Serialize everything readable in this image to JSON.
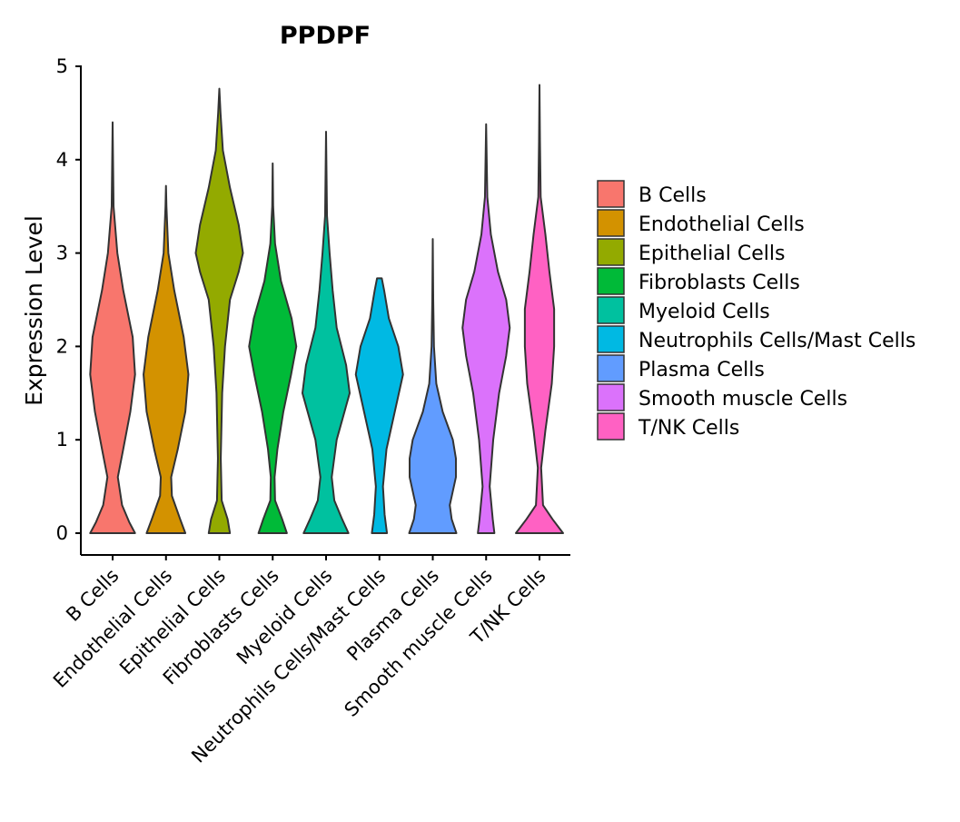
{
  "chart_data": {
    "type": "violin",
    "title": "PPDPF",
    "xlabel": "",
    "ylabel": "Expression Level",
    "ylim": [
      0,
      5
    ],
    "yticks": [
      0,
      1,
      2,
      3,
      4,
      5
    ],
    "ytick_labels": [
      "0",
      "1",
      "2",
      "3",
      "4",
      "5"
    ],
    "legend_position": "right",
    "categories": [
      "B Cells",
      "Endothelial Cells",
      "Epithelial Cells",
      "Fibroblasts Cells",
      "Myeloid Cells",
      "Neutrophils Cells/Mast Cells",
      "Plasma Cells",
      "Smooth muscle Cells",
      "T/NK Cells"
    ],
    "colors": [
      "#F8766D",
      "#D39200",
      "#93AA00",
      "#00BA38",
      "#00C19F",
      "#00B9E3",
      "#619CFF",
      "#DB72FB",
      "#FF61C3"
    ],
    "series": [
      {
        "name": "B Cells",
        "max": 4.4,
        "profile": [
          [
            0,
            0.95
          ],
          [
            0.12,
            0.7
          ],
          [
            0.3,
            0.4
          ],
          [
            0.6,
            0.22
          ],
          [
            0.9,
            0.45
          ],
          [
            1.3,
            0.75
          ],
          [
            1.7,
            0.95
          ],
          [
            2.1,
            0.85
          ],
          [
            2.6,
            0.45
          ],
          [
            3.0,
            0.2
          ],
          [
            3.5,
            0.04
          ],
          [
            4.4,
            0.0
          ]
        ]
      },
      {
        "name": "Endothelial Cells",
        "max": 3.72,
        "profile": [
          [
            0,
            0.82
          ],
          [
            0.15,
            0.6
          ],
          [
            0.4,
            0.25
          ],
          [
            0.6,
            0.22
          ],
          [
            0.9,
            0.5
          ],
          [
            1.3,
            0.82
          ],
          [
            1.7,
            0.95
          ],
          [
            2.1,
            0.75
          ],
          [
            2.6,
            0.35
          ],
          [
            3.0,
            0.1
          ],
          [
            3.5,
            0.02
          ],
          [
            3.72,
            0.0
          ]
        ]
      },
      {
        "name": "Epithelial Cells",
        "max": 4.76,
        "profile": [
          [
            0,
            0.45
          ],
          [
            0.15,
            0.35
          ],
          [
            0.35,
            0.1
          ],
          [
            0.8,
            0.06
          ],
          [
            1.5,
            0.12
          ],
          [
            2.0,
            0.24
          ],
          [
            2.5,
            0.45
          ],
          [
            2.8,
            0.82
          ],
          [
            3.0,
            1.0
          ],
          [
            3.3,
            0.82
          ],
          [
            3.7,
            0.45
          ],
          [
            4.1,
            0.15
          ],
          [
            4.5,
            0.05
          ],
          [
            4.76,
            0.0
          ]
        ]
      },
      {
        "name": "Fibroblasts Cells",
        "max": 3.96,
        "profile": [
          [
            0,
            0.6
          ],
          [
            0.15,
            0.4
          ],
          [
            0.35,
            0.1
          ],
          [
            0.6,
            0.08
          ],
          [
            0.9,
            0.2
          ],
          [
            1.3,
            0.45
          ],
          [
            1.7,
            0.78
          ],
          [
            2.0,
            1.0
          ],
          [
            2.3,
            0.8
          ],
          [
            2.7,
            0.35
          ],
          [
            3.1,
            0.1
          ],
          [
            3.5,
            0.02
          ],
          [
            3.96,
            0.0
          ]
        ]
      },
      {
        "name": "Myeloid Cells",
        "max": 4.3,
        "profile": [
          [
            0,
            0.95
          ],
          [
            0.15,
            0.68
          ],
          [
            0.35,
            0.35
          ],
          [
            0.6,
            0.24
          ],
          [
            1.0,
            0.45
          ],
          [
            1.5,
            1.0
          ],
          [
            1.8,
            0.85
          ],
          [
            2.2,
            0.45
          ],
          [
            2.6,
            0.28
          ],
          [
            3.0,
            0.15
          ],
          [
            3.4,
            0.04
          ],
          [
            4.3,
            0.0
          ]
        ]
      },
      {
        "name": "Neutrophils Cells/Mast Cells",
        "max": 2.73,
        "profile": [
          [
            0,
            0.32
          ],
          [
            0.2,
            0.22
          ],
          [
            0.5,
            0.15
          ],
          [
            0.9,
            0.3
          ],
          [
            1.3,
            0.65
          ],
          [
            1.7,
            1.0
          ],
          [
            2.0,
            0.8
          ],
          [
            2.3,
            0.4
          ],
          [
            2.6,
            0.2
          ],
          [
            2.73,
            0.1
          ]
        ]
      },
      {
        "name": "Plasma Cells",
        "max": 3.15,
        "profile": [
          [
            0,
            1.0
          ],
          [
            0.15,
            0.8
          ],
          [
            0.3,
            0.72
          ],
          [
            0.6,
            0.98
          ],
          [
            0.8,
            0.98
          ],
          [
            1.0,
            0.85
          ],
          [
            1.3,
            0.42
          ],
          [
            1.6,
            0.15
          ],
          [
            2.0,
            0.05
          ],
          [
            2.5,
            0.02
          ],
          [
            3.15,
            0.0
          ]
        ]
      },
      {
        "name": "Smooth muscle Cells",
        "max": 4.38,
        "profile": [
          [
            0,
            0.35
          ],
          [
            0.15,
            0.28
          ],
          [
            0.5,
            0.15
          ],
          [
            1.0,
            0.3
          ],
          [
            1.5,
            0.55
          ],
          [
            1.9,
            0.85
          ],
          [
            2.2,
            1.0
          ],
          [
            2.5,
            0.85
          ],
          [
            2.8,
            0.5
          ],
          [
            3.2,
            0.2
          ],
          [
            3.6,
            0.05
          ],
          [
            4.38,
            0.0
          ]
        ]
      },
      {
        "name": "T/NK Cells",
        "max": 4.8,
        "profile": [
          [
            0,
            1.0
          ],
          [
            0.15,
            0.55
          ],
          [
            0.3,
            0.15
          ],
          [
            0.7,
            0.07
          ],
          [
            1.1,
            0.25
          ],
          [
            1.6,
            0.52
          ],
          [
            2.0,
            0.62
          ],
          [
            2.4,
            0.62
          ],
          [
            2.8,
            0.42
          ],
          [
            3.2,
            0.25
          ],
          [
            3.6,
            0.05
          ],
          [
            4.2,
            0.02
          ],
          [
            4.8,
            0.0
          ]
        ]
      }
    ]
  }
}
